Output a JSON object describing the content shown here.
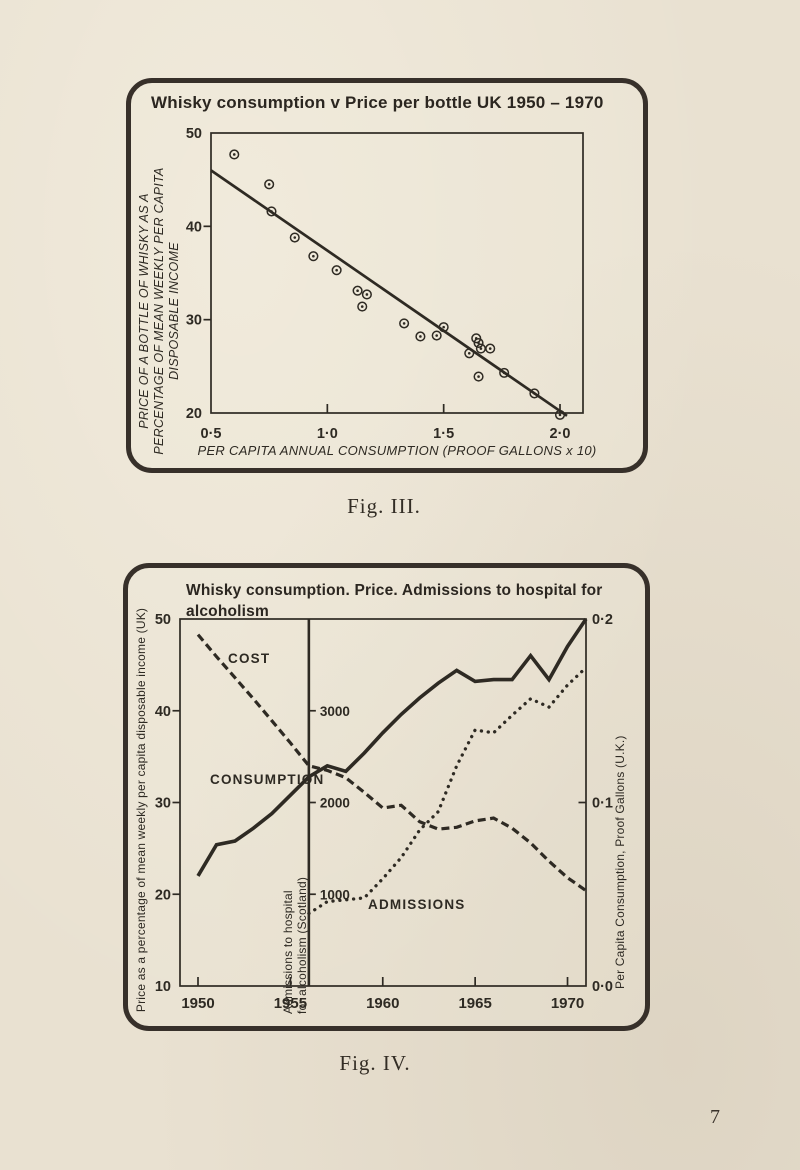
{
  "page": {
    "number": "7"
  },
  "chart_data": [
    {
      "type": "scatter",
      "title": "Whisky consumption v Price per bottle UK 1950 – 1970",
      "caption": "Fig. III.",
      "xlabel": "PER CAPITA ANNUAL CONSUMPTION (PROOF GALLONS x 10)",
      "ylabel": "PRICE OF A BOTTLE OF WHISKY AS A PERCENTAGE OF MEAN WEEKLY PER CAPITA DISPOSABLE INCOME",
      "ylabel_lines": [
        "PRICE OF A BOTTLE OF WHISKY AS A",
        "PERCENTAGE OF MEAN WEEKLY PER CAPITA",
        "DISPOSABLE INCOME"
      ],
      "xlim": [
        0.5,
        2.1
      ],
      "ylim": [
        20,
        50
      ],
      "grid": false,
      "xticks": [
        {
          "v": 0.5,
          "label": "0·5",
          "mark": false
        },
        {
          "v": 1.0,
          "label": "1·0",
          "mark": true
        },
        {
          "v": 1.5,
          "label": "1·5",
          "mark": true
        },
        {
          "v": 2.0,
          "label": "2·0",
          "mark": true
        }
      ],
      "yticks": [
        {
          "v": 20,
          "label": "20",
          "mark": false
        },
        {
          "v": 30,
          "label": "30",
          "mark": true
        },
        {
          "v": 40,
          "label": "40",
          "mark": true
        },
        {
          "v": 50,
          "label": "50",
          "mark": false
        }
      ],
      "points": [
        [
          0.6,
          47.7
        ],
        [
          0.75,
          44.5
        ],
        [
          0.76,
          41.6
        ],
        [
          0.86,
          38.8
        ],
        [
          0.94,
          36.8
        ],
        [
          1.04,
          35.3
        ],
        [
          1.13,
          33.1
        ],
        [
          1.17,
          32.7
        ],
        [
          1.15,
          31.4
        ],
        [
          1.33,
          29.6
        ],
        [
          1.4,
          28.2
        ],
        [
          1.5,
          29.2
        ],
        [
          1.47,
          28.3
        ],
        [
          1.64,
          28.0
        ],
        [
          1.65,
          27.5
        ],
        [
          1.66,
          26.9
        ],
        [
          1.7,
          26.9
        ],
        [
          1.61,
          26.4
        ],
        [
          1.65,
          23.9
        ],
        [
          1.76,
          24.3
        ],
        [
          1.89,
          22.1
        ],
        [
          2.0,
          19.8
        ]
      ],
      "trend_line": {
        "from": [
          0.5,
          46.0
        ],
        "to": [
          2.03,
          19.7
        ]
      }
    },
    {
      "type": "line",
      "title_lines": [
        "Whisky consumption. Price. Admissions to hospital for",
        "alcoholism"
      ],
      "caption": "Fig. IV.",
      "x_years": [
        1950,
        1951,
        1952,
        1953,
        1954,
        1955,
        1956,
        1957,
        1958,
        1959,
        1960,
        1961,
        1962,
        1963,
        1964,
        1965,
        1966,
        1967,
        1968,
        1969,
        1970,
        1971
      ],
      "xticks": [
        {
          "v": 1950,
          "label": "1950",
          "mark": true
        },
        {
          "v": 1955,
          "label": "1955",
          "mark": true
        },
        {
          "v": 1960,
          "label": "1960",
          "mark": true
        },
        {
          "v": 1965,
          "label": "1965",
          "mark": true
        },
        {
          "v": 1970,
          "label": "1970",
          "mark": true
        }
      ],
      "left_axis": {
        "label": "Price as a percentage of mean weekly per capita disposable income (UK)",
        "range": [
          10,
          50
        ],
        "ticks": [
          {
            "v": 10,
            "label": "10",
            "mark": false
          },
          {
            "v": 20,
            "label": "20",
            "mark": true
          },
          {
            "v": 30,
            "label": "30",
            "mark": true
          },
          {
            "v": 40,
            "label": "40",
            "mark": true
          },
          {
            "v": 50,
            "label": "50",
            "mark": false
          }
        ]
      },
      "inner_axis": {
        "label_lines": [
          "Admissions to hospital",
          "for alcoholism (Scotland)"
        ],
        "position_year": 1956,
        "ticks": [
          {
            "v": 1000,
            "label": "1000",
            "mark": true
          },
          {
            "v": 2000,
            "label": "2000",
            "mark": true
          },
          {
            "v": 3000,
            "label": "3000",
            "mark": true
          }
        ]
      },
      "right_axis": {
        "label": "Per Capita Consumption, Proof Gallons (U.K.)",
        "range": [
          0.0,
          0.2
        ],
        "ticks": [
          {
            "v": 0.0,
            "label": "0·0",
            "mark": false
          },
          {
            "v": 0.1,
            "label": "0·1",
            "mark": true
          },
          {
            "v": 0.2,
            "label": "0·2",
            "mark": false
          }
        ]
      },
      "series": [
        {
          "name": "COST",
          "axis": "left",
          "style": "dashed",
          "start_year": 1950,
          "values": [
            48.3,
            45.9,
            43.6,
            41.3,
            38.9,
            36.5,
            34.0,
            33.5,
            32.7,
            31.1,
            29.4,
            29.7,
            27.9,
            27.1,
            27.3,
            28.0,
            28.3,
            27.2,
            25.6,
            23.6,
            21.8,
            20.4
          ]
        },
        {
          "name": "CONSUMPTION",
          "axis": "right",
          "style": "solid",
          "start_year": 1950,
          "values": [
            0.06,
            0.077,
            0.079,
            0.086,
            0.094,
            0.104,
            0.114,
            0.12,
            0.117,
            0.127,
            0.138,
            0.148,
            0.157,
            0.165,
            0.172,
            0.166,
            0.167,
            0.167,
            0.18,
            0.167,
            0.185,
            0.2
          ]
        },
        {
          "name": "ADMISSIONS",
          "axis": "inner",
          "style": "dotted",
          "start_year": 1956,
          "values": [
            790,
            920,
            940,
            960,
            1170,
            1400,
            1700,
            1900,
            2400,
            2790,
            2760,
            2950,
            3130,
            3040,
            3280,
            3470
          ]
        }
      ]
    }
  ]
}
